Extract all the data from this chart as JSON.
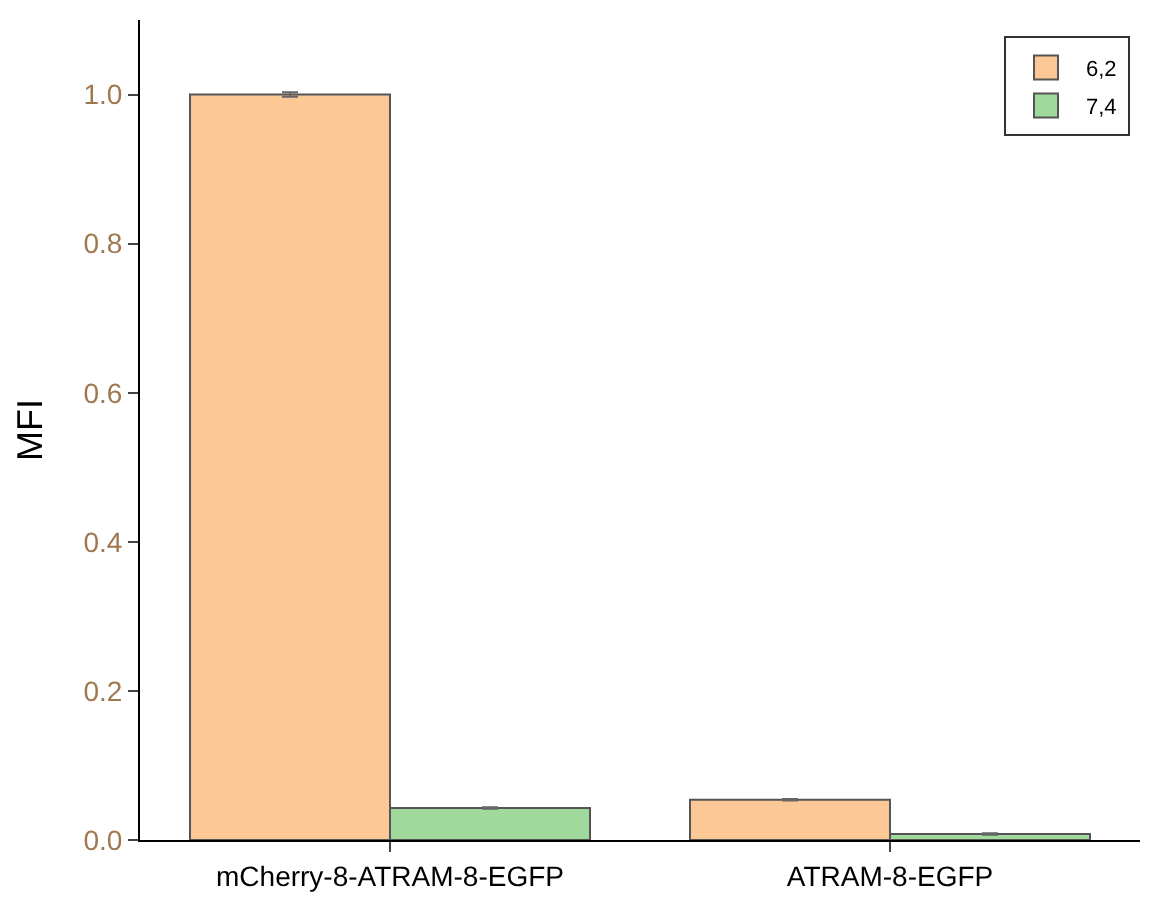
{
  "chart_data": {
    "type": "bar",
    "ylabel": "MFI",
    "categories": [
      "mCherry-8-ATRAM-8-EGFP",
      "ATRAM-8-EGFP"
    ],
    "series": [
      {
        "name": "6,2",
        "color": "#fcc896",
        "values": [
          1.0,
          0.054
        ],
        "errors": [
          0.003,
          0.001
        ]
      },
      {
        "name": "7,4",
        "color": "#a0d99c",
        "values": [
          0.043,
          0.008
        ],
        "errors": [
          0.001,
          0.001
        ]
      }
    ],
    "ylim": [
      0,
      1.1
    ],
    "yticks": [
      {
        "value": 0,
        "label": "0.0"
      },
      0.2,
      0.4,
      0.6,
      0.8,
      {
        "value": 1,
        "label": "1.0"
      }
    ],
    "legend": "top right"
  }
}
